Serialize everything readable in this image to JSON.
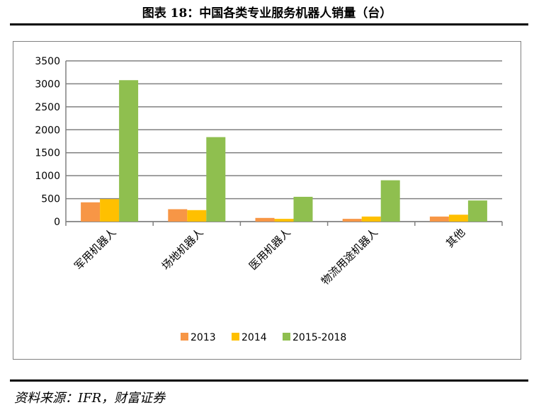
{
  "header": {
    "title": "图表 18：中国各类专业服务机器人销量（台）"
  },
  "footer": {
    "source": "资料来源：IFR，财富证券"
  },
  "chart_data": {
    "type": "bar",
    "categories": [
      "军用机器人",
      "场地机器人",
      "医用机器人",
      "物流用途机器人",
      "其他"
    ],
    "series": [
      {
        "name": "2013",
        "color": "#F79646",
        "values": [
          420,
          270,
          80,
          60,
          110
        ]
      },
      {
        "name": "2014",
        "color": "#FFC000",
        "values": [
          490,
          250,
          60,
          110,
          150
        ]
      },
      {
        "name": "2015-2018",
        "color": "#8FBF4F",
        "values": [
          3080,
          1840,
          540,
          900,
          460
        ]
      }
    ],
    "ylim": [
      0,
      3500
    ],
    "yticks": [
      "0",
      "500",
      "1000",
      "1500",
      "2000",
      "2500",
      "3000",
      "3500"
    ],
    "grid": true,
    "legend": "bottom"
  }
}
